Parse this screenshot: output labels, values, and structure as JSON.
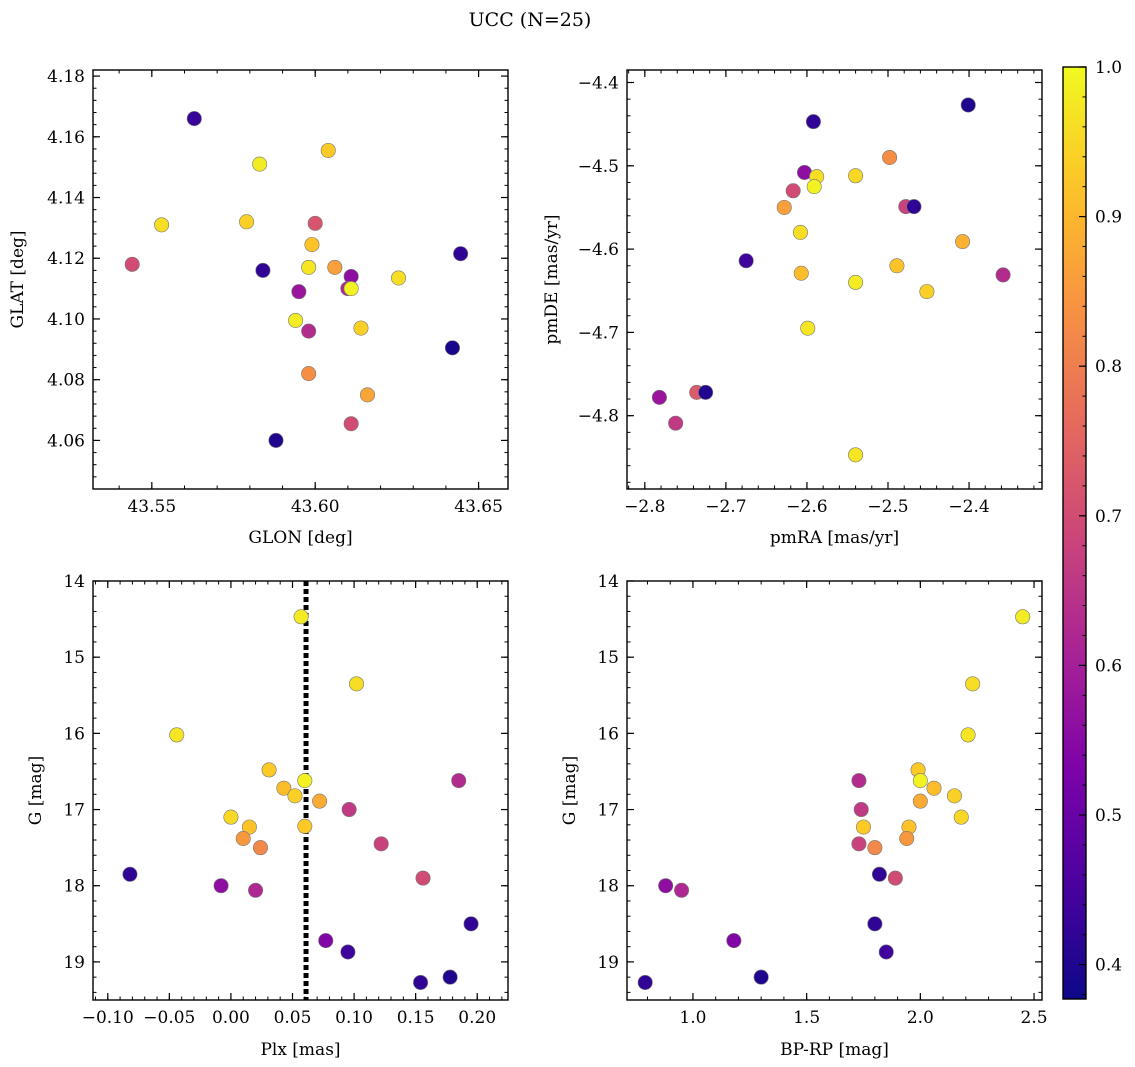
{
  "figure": {
    "title": "UCC (N=25)"
  },
  "colormap": {
    "name": "plasma",
    "range": [
      0.377,
      1.0
    ],
    "ticks": [
      0.4,
      0.5,
      0.6,
      0.7,
      0.8,
      0.9,
      1.0
    ],
    "tick_labels": [
      "0.4",
      "0.5",
      "0.6",
      "0.7",
      "0.8",
      "0.9",
      "1.0"
    ]
  },
  "colors": {
    "marker_edge": "#777777",
    "plx_line": "#000000"
  },
  "chart_data": [
    {
      "type": "scatter",
      "xlabel": "GLON [deg]",
      "ylabel": "GLAT [deg]",
      "xlim": [
        43.532,
        43.659
      ],
      "ylim": [
        4.044,
        4.182
      ],
      "xticks": [
        43.55,
        43.6,
        43.65
      ],
      "xtick_labels": [
        "43.55",
        "43.60",
        "43.65"
      ],
      "yticks": [
        4.06,
        4.08,
        4.1,
        4.12,
        4.14,
        4.16,
        4.18
      ],
      "ytick_labels": [
        "4.06",
        "4.08",
        "4.10",
        "4.12",
        "4.14",
        "4.16",
        "4.18"
      ],
      "x": [
        43.563,
        43.544,
        43.553,
        43.583,
        43.579,
        43.604,
        43.584,
        43.598,
        43.599,
        43.6,
        43.606,
        43.611,
        43.61,
        43.611,
        43.6255,
        43.594,
        43.6445,
        43.642,
        43.598,
        43.614,
        43.598,
        43.616,
        43.611,
        43.588,
        43.595
      ],
      "y": [
        4.166,
        4.118,
        4.131,
        4.151,
        4.132,
        4.1555,
        4.116,
        4.117,
        4.1245,
        4.1315,
        4.117,
        4.114,
        4.11,
        4.11,
        4.1135,
        4.0995,
        4.1215,
        4.0905,
        4.096,
        4.097,
        4.082,
        4.075,
        4.0655,
        4.06,
        4.109
      ],
      "c": [
        0.43,
        0.7,
        0.96,
        0.98,
        0.94,
        0.93,
        0.42,
        0.97,
        0.92,
        0.72,
        0.86,
        0.56,
        0.62,
        0.99,
        0.96,
        0.98,
        0.42,
        0.39,
        0.63,
        0.94,
        0.83,
        0.87,
        0.7,
        0.4,
        0.58
      ]
    },
    {
      "type": "scatter",
      "xlabel": "pmRA [mas/yr]",
      "ylabel": "pmDE [mas/yr]",
      "xlim": [
        -2.822,
        -2.31
      ],
      "ylim": [
        -4.888,
        -4.385
      ],
      "xticks": [
        -2.8,
        -2.7,
        -2.6,
        -2.5,
        -2.4
      ],
      "xtick_labels": [
        "−2.8",
        "−2.7",
        "−2.6",
        "−2.5",
        "−2.4"
      ],
      "yticks": [
        -4.8,
        -4.7,
        -4.6,
        -4.5,
        -4.4
      ],
      "ytick_labels": [
        "−4.8",
        "−4.7",
        "−4.6",
        "−4.5",
        "−4.4"
      ],
      "x": [
        -2.401,
        -2.592,
        -2.498,
        -2.603,
        -2.588,
        -2.617,
        -2.54,
        -2.591,
        -2.628,
        -2.478,
        -2.468,
        -2.608,
        -2.408,
        -2.675,
        -2.607,
        -2.489,
        -2.358,
        -2.54,
        -2.452,
        -2.599,
        -2.736,
        -2.725,
        -2.782,
        -2.762,
        -2.54
      ],
      "y": [
        -4.427,
        -4.447,
        -4.49,
        -4.508,
        -4.513,
        -4.53,
        -4.512,
        -4.525,
        -4.55,
        -4.549,
        -4.549,
        -4.58,
        -4.591,
        -4.614,
        -4.629,
        -4.62,
        -4.631,
        -4.64,
        -4.651,
        -4.695,
        -4.772,
        -4.772,
        -4.778,
        -4.809,
        -4.847
      ],
      "c": [
        0.4,
        0.42,
        0.83,
        0.56,
        0.96,
        0.7,
        0.95,
        0.99,
        0.86,
        0.68,
        0.42,
        0.96,
        0.89,
        0.44,
        0.91,
        0.92,
        0.63,
        0.98,
        0.94,
        0.97,
        0.73,
        0.4,
        0.58,
        0.66,
        0.97
      ]
    },
    {
      "type": "scatter",
      "xlabel": "Plx [mas]",
      "ylabel": "G [mag]",
      "xlim": [
        -0.112,
        0.225
      ],
      "ylim": [
        19.5,
        14.0
      ],
      "y_inverted": true,
      "xticks": [
        -0.1,
        -0.05,
        0.0,
        0.05,
        0.1,
        0.15,
        0.2
      ],
      "xtick_labels": [
        "−0.10",
        "−0.05",
        "0.00",
        "0.05",
        "0.10",
        "0.15",
        "0.20"
      ],
      "yticks": [
        14,
        15,
        16,
        17,
        18,
        19
      ],
      "ytick_labels": [
        "14",
        "15",
        "16",
        "17",
        "18",
        "19"
      ],
      "vline_x": 0.061,
      "x": [
        0.057,
        0.102,
        -0.044,
        0.031,
        0.043,
        0.052,
        0.06,
        0.072,
        0.185,
        0.0,
        0.015,
        0.096,
        0.01,
        0.024,
        0.06,
        0.122,
        -0.082,
        0.156,
        -0.008,
        0.02,
        0.195,
        0.077,
        0.095,
        0.178,
        0.154
      ],
      "y": [
        14.47,
        15.35,
        16.02,
        16.48,
        16.72,
        16.82,
        16.62,
        16.89,
        16.62,
        17.1,
        17.23,
        17.0,
        17.38,
        17.5,
        17.22,
        17.45,
        17.85,
        17.9,
        18.0,
        18.06,
        18.5,
        18.72,
        18.87,
        19.2,
        19.27
      ],
      "c": [
        0.98,
        0.96,
        0.97,
        0.93,
        0.91,
        0.94,
        0.99,
        0.88,
        0.63,
        0.95,
        0.92,
        0.66,
        0.85,
        0.82,
        0.93,
        0.68,
        0.42,
        0.7,
        0.56,
        0.62,
        0.42,
        0.54,
        0.44,
        0.4,
        0.42
      ]
    },
    {
      "type": "scatter",
      "xlabel": "BP-RP [mag]",
      "ylabel": "G [mag]",
      "xlim": [
        0.71,
        2.535
      ],
      "ylim": [
        19.5,
        14.0
      ],
      "y_inverted": true,
      "xticks": [
        1.0,
        1.5,
        2.0,
        2.5
      ],
      "xtick_labels": [
        "1.0",
        "1.5",
        "2.0",
        "2.5"
      ],
      "yticks": [
        14,
        15,
        16,
        17,
        18,
        19
      ],
      "ytick_labels": [
        "14",
        "15",
        "16",
        "17",
        "18",
        "19"
      ],
      "x": [
        2.45,
        2.23,
        2.21,
        1.99,
        2.0,
        2.06,
        2.15,
        2.0,
        1.73,
        2.18,
        1.75,
        1.74,
        1.95,
        1.73,
        1.94,
        1.8,
        1.82,
        1.89,
        0.88,
        0.95,
        1.8,
        1.18,
        1.85,
        1.3,
        0.79
      ],
      "y": [
        14.47,
        15.35,
        16.02,
        16.48,
        16.62,
        16.72,
        16.82,
        16.89,
        16.62,
        17.1,
        17.23,
        17.0,
        17.23,
        17.45,
        17.38,
        17.5,
        17.85,
        17.9,
        18.0,
        18.06,
        18.5,
        18.72,
        18.87,
        19.2,
        19.27
      ],
      "c": [
        0.98,
        0.96,
        0.97,
        0.93,
        0.99,
        0.91,
        0.94,
        0.88,
        0.63,
        0.95,
        0.93,
        0.66,
        0.92,
        0.68,
        0.85,
        0.82,
        0.42,
        0.7,
        0.56,
        0.62,
        0.42,
        0.54,
        0.44,
        0.4,
        0.42
      ]
    }
  ]
}
